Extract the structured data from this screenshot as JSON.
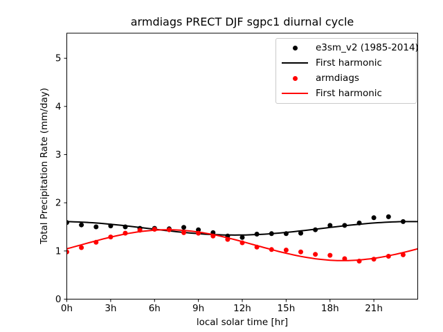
{
  "chart_data": {
    "type": "scatter",
    "title": "armdiags PRECT DJF sgpc1 diurnal cycle",
    "xlabel": "local solar time [hr]",
    "ylabel": "Total Precipitation Rate (mm/day)",
    "xlim": [
      0,
      24
    ],
    "ylim": [
      0,
      5.52
    ],
    "grid": false,
    "legend_position": "upper right",
    "xticks": {
      "values": [
        0,
        3,
        6,
        9,
        12,
        15,
        18,
        21
      ],
      "labels": [
        "0h",
        "3h",
        "6h",
        "9h",
        "12h",
        "15h",
        "18h",
        "21h"
      ]
    },
    "yticks": {
      "values": [
        0,
        1,
        2,
        3,
        4,
        5
      ],
      "labels": [
        "0",
        "1",
        "2",
        "3",
        "4",
        "5"
      ]
    },
    "x_hours": [
      0,
      1,
      2,
      3,
      4,
      5,
      6,
      7,
      8,
      9,
      10,
      11,
      12,
      13,
      14,
      15,
      16,
      17,
      18,
      19,
      20,
      21,
      22,
      23
    ],
    "series": [
      {
        "name": "e3sm_v2 (1985-2014)",
        "type": "scatter",
        "color": "#000000",
        "values": [
          1.59,
          1.54,
          1.5,
          1.52,
          1.5,
          1.47,
          1.47,
          1.46,
          1.49,
          1.44,
          1.38,
          1.31,
          1.28,
          1.35,
          1.36,
          1.36,
          1.37,
          1.44,
          1.53,
          1.53,
          1.58,
          1.69,
          1.71,
          1.61
        ]
      },
      {
        "name": "First harmonic",
        "type": "line",
        "color": "#000000",
        "harmonic": {
          "mean": 1.47,
          "amplitude": 0.14,
          "peak_hour": 23.5
        }
      },
      {
        "name": "armdiags",
        "type": "scatter",
        "color": "#ff0000",
        "values": [
          0.98,
          1.07,
          1.18,
          1.29,
          1.37,
          1.43,
          1.45,
          1.44,
          1.38,
          1.37,
          1.31,
          1.24,
          1.17,
          1.08,
          1.03,
          1.02,
          0.98,
          0.93,
          0.91,
          0.84,
          0.79,
          0.83,
          0.89,
          0.92
        ]
      },
      {
        "name": "First harmonic",
        "type": "line",
        "color": "#ff0000",
        "harmonic": {
          "mean": 1.12,
          "amplitude": 0.32,
          "peak_hour": 6.9
        }
      }
    ]
  }
}
